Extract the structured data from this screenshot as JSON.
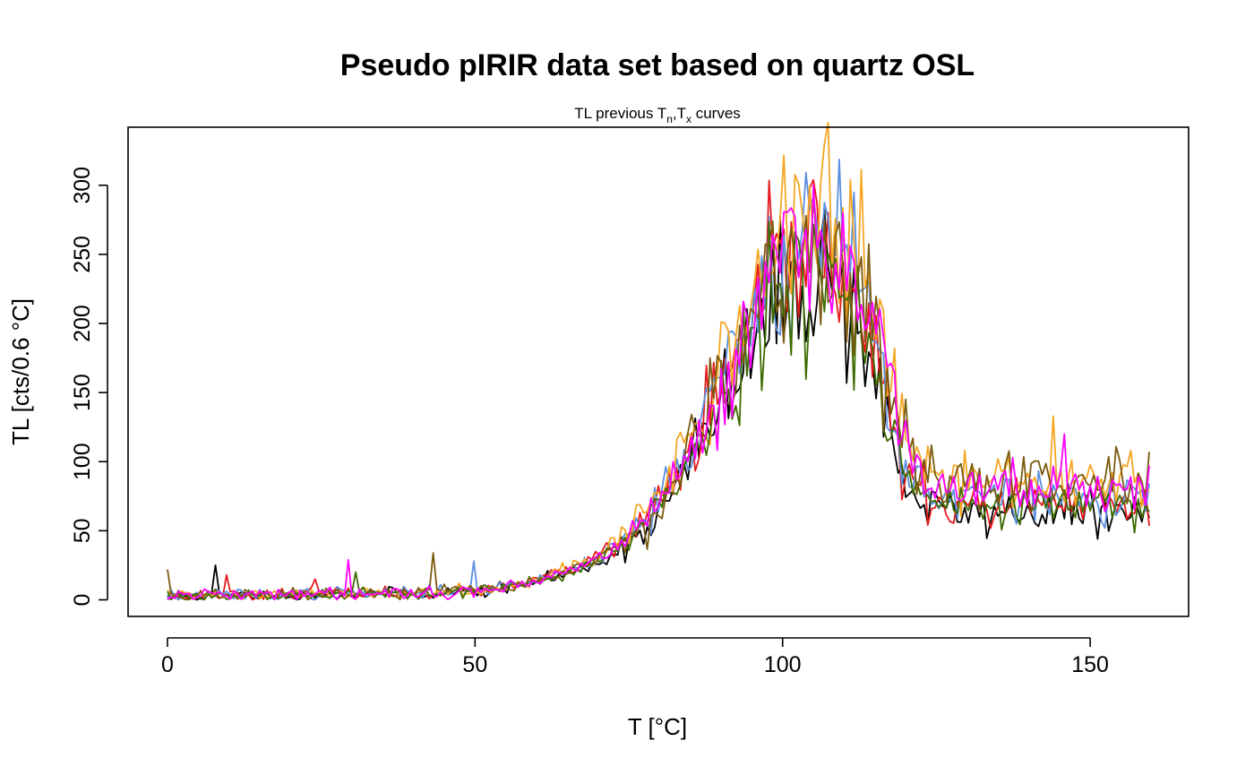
{
  "chart_data": {
    "type": "line",
    "title": "Pseudo pIRIR data set based on quartz OSL",
    "subtitle": {
      "prefix": "TL previous T",
      "sub1": "n",
      "sep": ",T",
      "sub2": "x",
      "suffix": " curves"
    },
    "xlabel": "T [°C]",
    "ylabel": "TL [cts/0.6 °C]",
    "xlim": [
      -6.4,
      166
    ],
    "ylim": [
      -12,
      342
    ],
    "xticks": [
      0,
      50,
      100,
      150
    ],
    "yticks": [
      0,
      50,
      100,
      150,
      200,
      250,
      300
    ],
    "grid": false,
    "legend": "none",
    "x": {
      "start": 0,
      "end": 160,
      "step": 0.6
    },
    "envelope": {
      "description_free_params": true,
      "base_points": [
        [
          0,
          3
        ],
        [
          20,
          4
        ],
        [
          40,
          5
        ],
        [
          52,
          7
        ],
        [
          58,
          12
        ],
        [
          63,
          18
        ],
        [
          68,
          26
        ],
        [
          73,
          38
        ],
        [
          78,
          58
        ],
        [
          83,
          92
        ],
        [
          88,
          135
        ],
        [
          93,
          180
        ],
        [
          97,
          218
        ],
        [
          100,
          240
        ],
        [
          103,
          255
        ],
        [
          105,
          262
        ],
        [
          107,
          262
        ],
        [
          109,
          255
        ],
        [
          111,
          238
        ],
        [
          113,
          215
        ],
        [
          115,
          185
        ],
        [
          117,
          150
        ],
        [
          119,
          118
        ],
        [
          121,
          98
        ],
        [
          124,
          82
        ],
        [
          130,
          78
        ],
        [
          140,
          80
        ],
        [
          150,
          79
        ],
        [
          160,
          76
        ]
      ]
    },
    "series": [
      {
        "color": "#000000",
        "scale": 0.91,
        "tail": 0.8,
        "noise": 0.13,
        "seed": 11,
        "spikes": [
          [
            8,
            25
          ]
        ]
      },
      {
        "color": "#E41A1C",
        "scale": 0.99,
        "tail": 0.86,
        "noise": 0.12,
        "seed": 23,
        "spikes": [
          [
            9.6,
            18
          ],
          [
            24,
            15
          ]
        ]
      },
      {
        "color": "#5B8FE0",
        "scale": 1.04,
        "tail": 0.93,
        "noise": 0.12,
        "seed": 37,
        "spikes": [
          [
            50,
            28
          ],
          [
            111.6,
            295
          ]
        ]
      },
      {
        "color": "#F5A623",
        "scale": 1.09,
        "tail": 1.1,
        "noise": 0.12,
        "seed": 41,
        "spikes": [
          [
            106.8,
            330
          ],
          [
            144,
            133
          ]
        ]
      },
      {
        "color": "#3D6B00",
        "scale": 0.94,
        "tail": 0.87,
        "noise": 0.12,
        "seed": 53,
        "spikes": [
          [
            30.6,
            20
          ]
        ]
      },
      {
        "color": "#7A5A10",
        "scale": 0.97,
        "tail": 1.08,
        "noise": 0.12,
        "seed": 67,
        "spikes": [
          [
            0,
            22
          ],
          [
            43.2,
            34
          ]
        ]
      },
      {
        "color": "#FF00FF",
        "scale": 1.0,
        "tail": 1.05,
        "noise": 0.11,
        "seed": 79,
        "spikes": [
          [
            29.4,
            29
          ],
          [
            105,
            300
          ],
          [
            145.8,
            120
          ]
        ]
      }
    ]
  }
}
